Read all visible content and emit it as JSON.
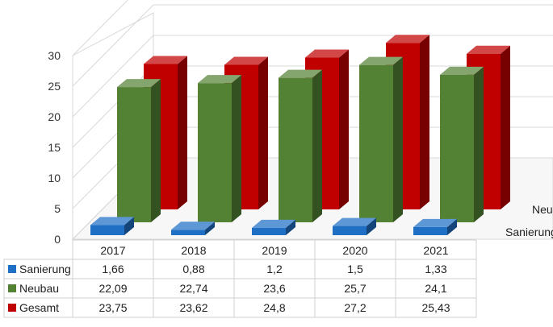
{
  "chart_data": {
    "type": "bar",
    "style": "3d-column-with-data-table",
    "categories": [
      "2017",
      "2018",
      "2019",
      "2020",
      "2021"
    ],
    "series": [
      {
        "name": "Sanierung",
        "color": "#1F6FC4",
        "values": [
          1.66,
          0.88,
          1.2,
          1.5,
          1.33
        ],
        "labels": [
          "1,66",
          "0,88",
          "1,2",
          "1,5",
          "1,33"
        ]
      },
      {
        "name": "Neubau",
        "color": "#548235",
        "values": [
          22.09,
          22.74,
          23.6,
          25.7,
          24.1
        ],
        "labels": [
          "22,09",
          "22,74",
          "23,6",
          "25,7",
          "24,1"
        ]
      },
      {
        "name": "Gesamt",
        "color": "#C00000",
        "values": [
          23.75,
          23.62,
          24.8,
          27.2,
          25.43
        ],
        "labels": [
          "23,75",
          "23,62",
          "24,8",
          "27,2",
          "25,43"
        ]
      }
    ],
    "y_ticks": [
      "0",
      "5",
      "10",
      "15",
      "20",
      "25",
      "30"
    ],
    "ylim": [
      0,
      30
    ],
    "depth_axis_labels": [
      "Sanierung",
      "Neu"
    ],
    "title": "",
    "xlabel": "",
    "ylabel": "",
    "legend": "data-table"
  }
}
